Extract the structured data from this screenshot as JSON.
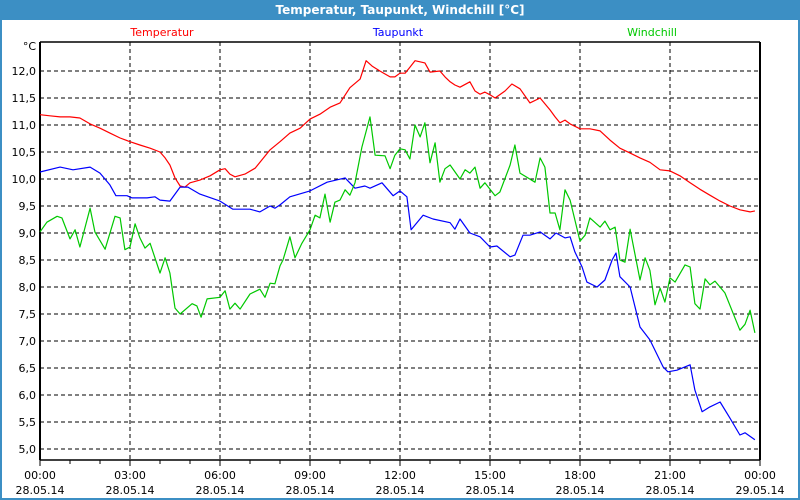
{
  "window": {
    "title": "Temperatur, Taupunkt, Windchill [°C]"
  },
  "chart_data": {
    "type": "line",
    "title": "Temperatur, Taupunkt, Windchill [°C]",
    "ylabel": "°C",
    "xlabel": "",
    "ylim": [
      4.8,
      12.54
    ],
    "xlim_hours": [
      0,
      24
    ],
    "grid": true,
    "legend_placement": "top",
    "y_ticks": [
      "5,0",
      "5,5",
      "6,0",
      "6,5",
      "7,0",
      "7,5",
      "8,0",
      "8,5",
      "9,0",
      "9,5",
      "10,0",
      "10,5",
      "11,0",
      "11,5",
      "12,0"
    ],
    "x_ticks": [
      {
        "time": "00:00",
        "date": "28.05.14"
      },
      {
        "time": "03:00",
        "date": "28.05.14"
      },
      {
        "time": "06:00",
        "date": "28.05.14"
      },
      {
        "time": "09:00",
        "date": "28.05.14"
      },
      {
        "time": "12:00",
        "date": "28.05.14"
      },
      {
        "time": "15:00",
        "date": "28.05.14"
      },
      {
        "time": "18:00",
        "date": "28.05.14"
      },
      {
        "time": "21:00",
        "date": "28.05.14"
      },
      {
        "time": "00:00",
        "date": "29.05.14"
      }
    ],
    "series": [
      {
        "name": "Temperatur",
        "color": "#ff0000",
        "points": [
          [
            0,
            11.19
          ],
          [
            0.33,
            11.17
          ],
          [
            0.67,
            11.15
          ],
          [
            1,
            11.15
          ],
          [
            1.33,
            11.13
          ],
          [
            1.67,
            11.02
          ],
          [
            2,
            10.94
          ],
          [
            2.33,
            10.85
          ],
          [
            2.67,
            10.76
          ],
          [
            3,
            10.69
          ],
          [
            3.33,
            10.63
          ],
          [
            3.67,
            10.57
          ],
          [
            4,
            10.5
          ],
          [
            4.17,
            10.39
          ],
          [
            4.33,
            10.26
          ],
          [
            4.5,
            10.02
          ],
          [
            4.67,
            9.87
          ],
          [
            4.83,
            9.85
          ],
          [
            5,
            9.93
          ],
          [
            5.33,
            9.98
          ],
          [
            5.67,
            10.06
          ],
          [
            6,
            10.17
          ],
          [
            6.17,
            10.19
          ],
          [
            6.33,
            10.09
          ],
          [
            6.5,
            10.04
          ],
          [
            6.83,
            10.09
          ],
          [
            7.17,
            10.2
          ],
          [
            7.67,
            10.54
          ],
          [
            8,
            10.69
          ],
          [
            8.33,
            10.85
          ],
          [
            8.67,
            10.94
          ],
          [
            9,
            11.11
          ],
          [
            9.33,
            11.2
          ],
          [
            9.67,
            11.33
          ],
          [
            10,
            11.41
          ],
          [
            10.33,
            11.69
          ],
          [
            10.67,
            11.85
          ],
          [
            10.87,
            12.19
          ],
          [
            11.07,
            12.09
          ],
          [
            11.33,
            12.0
          ],
          [
            11.67,
            11.89
          ],
          [
            11.83,
            11.89
          ],
          [
            12,
            11.96
          ],
          [
            12.17,
            11.96
          ],
          [
            12.33,
            12.07
          ],
          [
            12.5,
            12.19
          ],
          [
            12.83,
            12.15
          ],
          [
            13,
            11.98
          ],
          [
            13.33,
            12.0
          ],
          [
            13.5,
            11.89
          ],
          [
            13.67,
            11.8
          ],
          [
            13.83,
            11.74
          ],
          [
            14,
            11.7
          ],
          [
            14.33,
            11.8
          ],
          [
            14.5,
            11.63
          ],
          [
            14.67,
            11.57
          ],
          [
            14.83,
            11.61
          ],
          [
            15,
            11.56
          ],
          [
            15.17,
            11.5
          ],
          [
            15.5,
            11.63
          ],
          [
            15.73,
            11.76
          ],
          [
            16,
            11.67
          ],
          [
            16.33,
            11.41
          ],
          [
            16.67,
            11.5
          ],
          [
            17,
            11.28
          ],
          [
            17.17,
            11.15
          ],
          [
            17.33,
            11.04
          ],
          [
            17.5,
            11.09
          ],
          [
            17.67,
            11.02
          ],
          [
            18,
            10.93
          ],
          [
            18.33,
            10.93
          ],
          [
            18.67,
            10.89
          ],
          [
            19,
            10.72
          ],
          [
            19.33,
            10.57
          ],
          [
            19.67,
            10.48
          ],
          [
            20,
            10.39
          ],
          [
            20.33,
            10.31
          ],
          [
            20.67,
            10.17
          ],
          [
            21,
            10.15
          ],
          [
            21.33,
            10.06
          ],
          [
            21.67,
            9.93
          ],
          [
            22,
            9.81
          ],
          [
            22.33,
            9.7
          ],
          [
            22.67,
            9.59
          ],
          [
            23,
            9.5
          ],
          [
            23.33,
            9.43
          ],
          [
            23.67,
            9.39
          ],
          [
            23.83,
            9.41
          ]
        ]
      },
      {
        "name": "Taupunkt",
        "color": "#0000ff",
        "points": [
          [
            0,
            10.13
          ],
          [
            0.67,
            10.22
          ],
          [
            1.1,
            10.17
          ],
          [
            1.67,
            10.22
          ],
          [
            2,
            10.11
          ],
          [
            2.33,
            9.89
          ],
          [
            2.53,
            9.69
          ],
          [
            2.9,
            9.69
          ],
          [
            3.07,
            9.65
          ],
          [
            3.57,
            9.65
          ],
          [
            3.83,
            9.67
          ],
          [
            4,
            9.61
          ],
          [
            4.33,
            9.59
          ],
          [
            4.67,
            9.85
          ],
          [
            4.93,
            9.85
          ],
          [
            5.33,
            9.72
          ],
          [
            6,
            9.59
          ],
          [
            6.43,
            9.44
          ],
          [
            7,
            9.44
          ],
          [
            7.33,
            9.39
          ],
          [
            7.67,
            9.5
          ],
          [
            7.83,
            9.46
          ],
          [
            8,
            9.52
          ],
          [
            8.33,
            9.67
          ],
          [
            9,
            9.78
          ],
          [
            9.57,
            9.94
          ],
          [
            10.17,
            10.02
          ],
          [
            10.5,
            9.83
          ],
          [
            10.83,
            9.87
          ],
          [
            11,
            9.83
          ],
          [
            11.4,
            9.93
          ],
          [
            11.77,
            9.69
          ],
          [
            12,
            9.78
          ],
          [
            12.23,
            9.67
          ],
          [
            12.37,
            9.06
          ],
          [
            12.77,
            9.33
          ],
          [
            13.1,
            9.26
          ],
          [
            13.67,
            9.19
          ],
          [
            13.83,
            9.07
          ],
          [
            14,
            9.26
          ],
          [
            14.33,
            9.0
          ],
          [
            14.67,
            8.93
          ],
          [
            15,
            8.74
          ],
          [
            15.23,
            8.76
          ],
          [
            15.67,
            8.56
          ],
          [
            15.83,
            8.59
          ],
          [
            16.1,
            8.96
          ],
          [
            16.33,
            8.96
          ],
          [
            16.67,
            9.02
          ],
          [
            17,
            8.89
          ],
          [
            17.2,
            9.0
          ],
          [
            17.5,
            8.91
          ],
          [
            17.67,
            8.93
          ],
          [
            17.83,
            8.65
          ],
          [
            18.07,
            8.37
          ],
          [
            18.23,
            8.09
          ],
          [
            18.57,
            8.0
          ],
          [
            18.83,
            8.13
          ],
          [
            19.07,
            8.5
          ],
          [
            19.2,
            8.63
          ],
          [
            19.33,
            8.19
          ],
          [
            19.67,
            8.0
          ],
          [
            20,
            7.26
          ],
          [
            20.33,
            7.02
          ],
          [
            20.77,
            6.52
          ],
          [
            20.93,
            6.43
          ],
          [
            21.23,
            6.46
          ],
          [
            21.67,
            6.56
          ],
          [
            21.83,
            6.09
          ],
          [
            22.07,
            5.69
          ],
          [
            22.33,
            5.78
          ],
          [
            22.67,
            5.87
          ],
          [
            23,
            5.57
          ],
          [
            23.33,
            5.26
          ],
          [
            23.5,
            5.3
          ],
          [
            23.83,
            5.17
          ]
        ]
      },
      {
        "name": "Windchill",
        "color": "#00c800",
        "points": [
          [
            0,
            9.02
          ],
          [
            0.23,
            9.2
          ],
          [
            0.57,
            9.31
          ],
          [
            0.73,
            9.28
          ],
          [
            1,
            8.89
          ],
          [
            1.17,
            9.06
          ],
          [
            1.33,
            8.74
          ],
          [
            1.67,
            9.46
          ],
          [
            1.83,
            9.02
          ],
          [
            2.17,
            8.7
          ],
          [
            2.5,
            9.31
          ],
          [
            2.67,
            9.28
          ],
          [
            2.83,
            8.69
          ],
          [
            3,
            8.74
          ],
          [
            3.17,
            9.17
          ],
          [
            3.33,
            8.91
          ],
          [
            3.5,
            8.72
          ],
          [
            3.67,
            8.81
          ],
          [
            4,
            8.26
          ],
          [
            4.17,
            8.54
          ],
          [
            4.33,
            8.26
          ],
          [
            4.5,
            7.61
          ],
          [
            4.67,
            7.5
          ],
          [
            5.07,
            7.69
          ],
          [
            5.23,
            7.65
          ],
          [
            5.37,
            7.44
          ],
          [
            5.57,
            7.78
          ],
          [
            6,
            7.81
          ],
          [
            6.17,
            7.93
          ],
          [
            6.33,
            7.59
          ],
          [
            6.5,
            7.7
          ],
          [
            6.67,
            7.59
          ],
          [
            7,
            7.87
          ],
          [
            7.33,
            7.96
          ],
          [
            7.5,
            7.81
          ],
          [
            7.67,
            8.07
          ],
          [
            7.83,
            8.06
          ],
          [
            8,
            8.39
          ],
          [
            8.1,
            8.5
          ],
          [
            8.33,
            8.93
          ],
          [
            8.5,
            8.54
          ],
          [
            8.73,
            8.81
          ],
          [
            9,
            9.06
          ],
          [
            9.17,
            9.33
          ],
          [
            9.33,
            9.28
          ],
          [
            9.5,
            9.72
          ],
          [
            9.67,
            9.2
          ],
          [
            9.83,
            9.57
          ],
          [
            10,
            9.61
          ],
          [
            10.17,
            9.8
          ],
          [
            10.33,
            9.7
          ],
          [
            10.5,
            9.93
          ],
          [
            10.73,
            10.59
          ],
          [
            11,
            11.15
          ],
          [
            11.17,
            10.44
          ],
          [
            11.5,
            10.43
          ],
          [
            11.67,
            10.19
          ],
          [
            11.83,
            10.44
          ],
          [
            12,
            10.56
          ],
          [
            12.17,
            10.54
          ],
          [
            12.33,
            10.37
          ],
          [
            12.5,
            11.0
          ],
          [
            12.67,
            10.78
          ],
          [
            12.83,
            11.04
          ],
          [
            13,
            10.3
          ],
          [
            13.17,
            10.67
          ],
          [
            13.33,
            9.94
          ],
          [
            13.5,
            10.19
          ],
          [
            13.67,
            10.26
          ],
          [
            14,
            10.0
          ],
          [
            14.17,
            10.17
          ],
          [
            14.33,
            10.11
          ],
          [
            14.5,
            10.22
          ],
          [
            14.67,
            9.83
          ],
          [
            14.83,
            9.93
          ],
          [
            15.17,
            9.69
          ],
          [
            15.33,
            9.76
          ],
          [
            15.67,
            10.26
          ],
          [
            15.83,
            10.63
          ],
          [
            16,
            10.11
          ],
          [
            16.5,
            9.94
          ],
          [
            16.67,
            10.39
          ],
          [
            16.83,
            10.22
          ],
          [
            17,
            9.37
          ],
          [
            17.17,
            9.37
          ],
          [
            17.33,
            9.06
          ],
          [
            17.5,
            9.8
          ],
          [
            17.67,
            9.61
          ],
          [
            18,
            8.85
          ],
          [
            18.17,
            8.96
          ],
          [
            18.33,
            9.28
          ],
          [
            18.67,
            9.11
          ],
          [
            18.83,
            9.22
          ],
          [
            19,
            9.06
          ],
          [
            19.17,
            9.11
          ],
          [
            19.33,
            8.5
          ],
          [
            19.5,
            8.46
          ],
          [
            19.67,
            9.07
          ],
          [
            20,
            8.13
          ],
          [
            20.17,
            8.54
          ],
          [
            20.33,
            8.31
          ],
          [
            20.5,
            7.67
          ],
          [
            20.67,
            7.98
          ],
          [
            20.83,
            7.72
          ],
          [
            21,
            8.17
          ],
          [
            21.17,
            8.09
          ],
          [
            21.5,
            8.41
          ],
          [
            21.67,
            8.37
          ],
          [
            21.83,
            7.69
          ],
          [
            22,
            7.59
          ],
          [
            22.17,
            8.15
          ],
          [
            22.33,
            8.04
          ],
          [
            22.5,
            8.11
          ],
          [
            22.83,
            7.89
          ],
          [
            23.33,
            7.2
          ],
          [
            23.5,
            7.31
          ],
          [
            23.67,
            7.57
          ],
          [
            23.83,
            7.15
          ]
        ]
      }
    ]
  }
}
